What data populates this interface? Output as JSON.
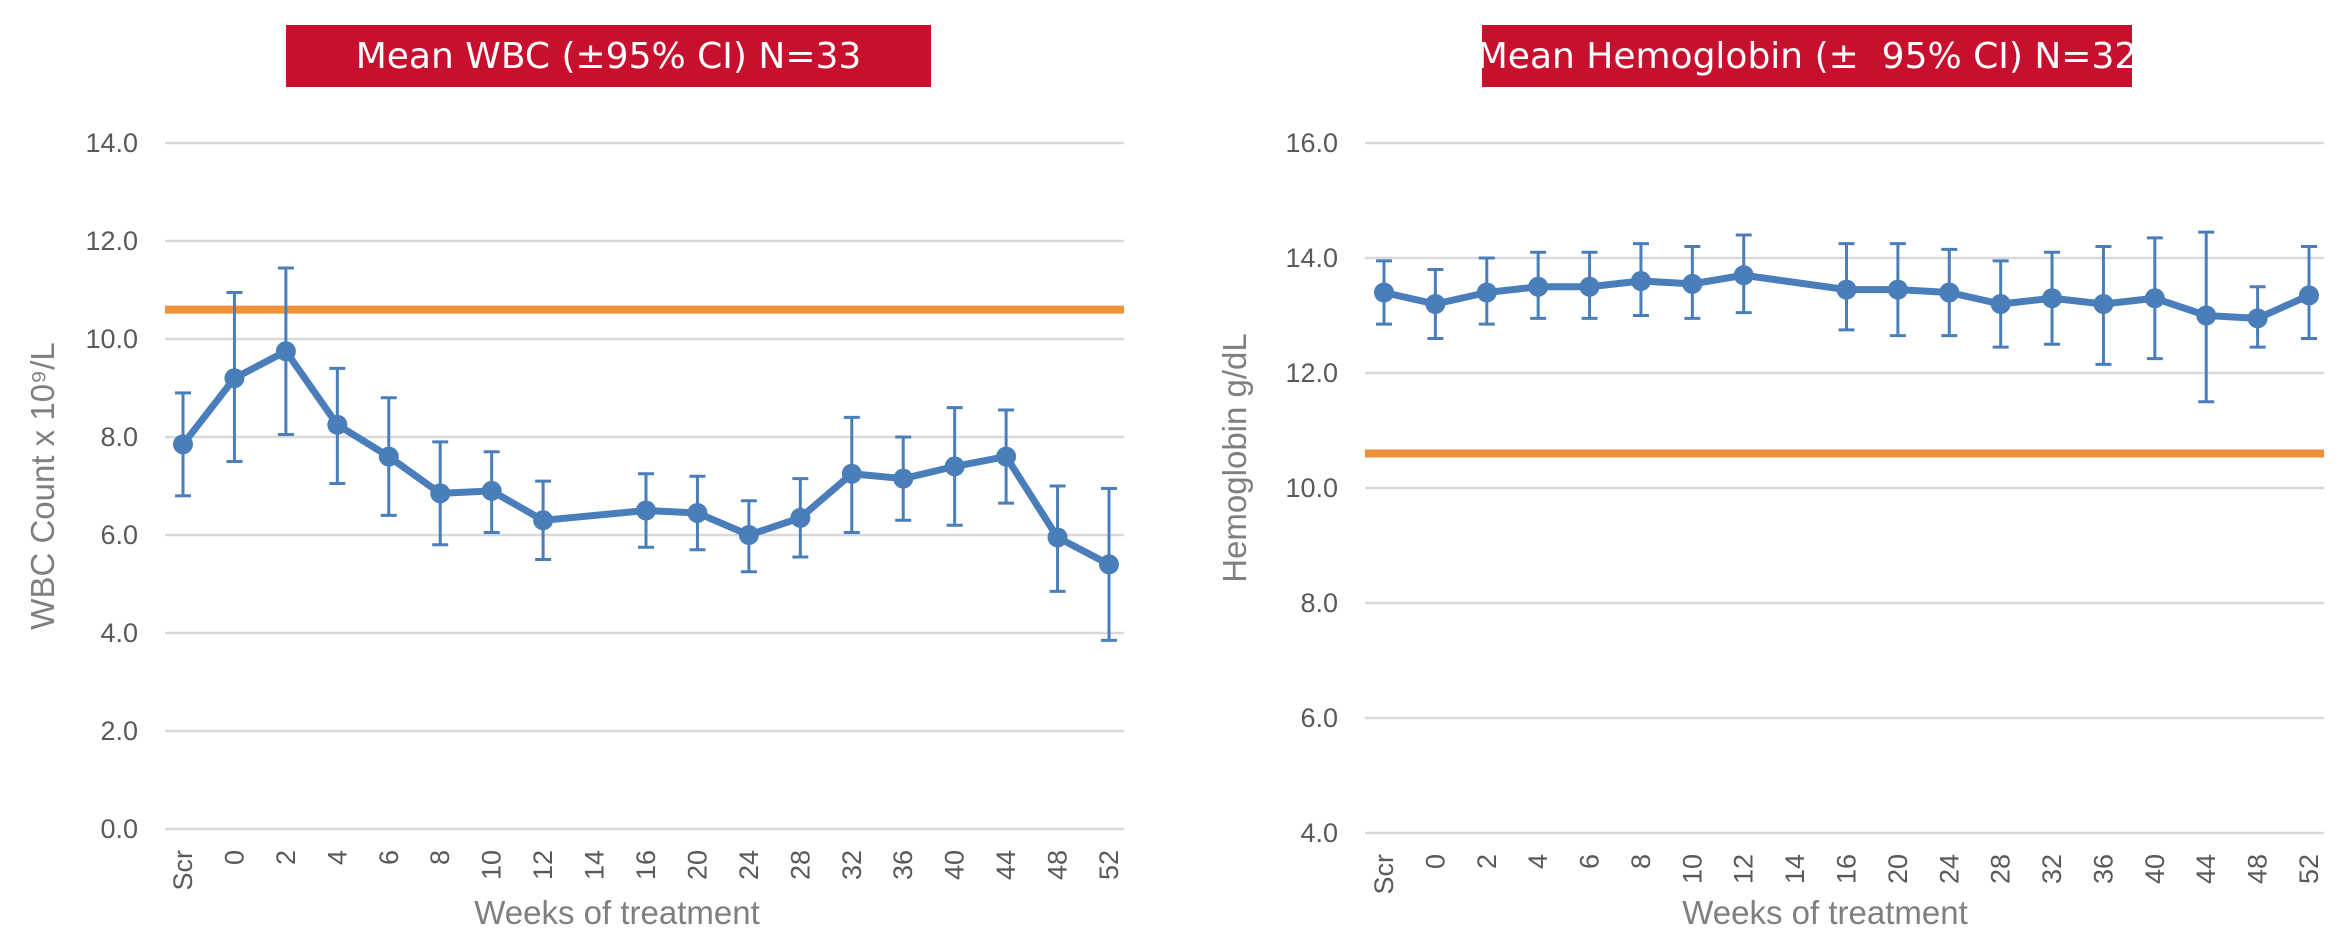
{
  "chart_data": [
    {
      "type": "line",
      "title": "Mean WBC (±95% CI) N=33",
      "xlabel": "Weeks of treatment",
      "ylabel": "WBC Count x 10⁹/L",
      "ylim": [
        0,
        14
      ],
      "y_ticks": [
        "0.0",
        "2.0",
        "4.0",
        "6.0",
        "8.0",
        "10.0",
        "12.0",
        "14.0"
      ],
      "x_tick_labels": [
        "Scr",
        "0",
        "2",
        "4",
        "6",
        "8",
        "10",
        "12",
        "14",
        "16",
        "20",
        "24",
        "28",
        "32",
        "36",
        "40",
        "44",
        "48",
        "52"
      ],
      "grid": true,
      "reference_line": {
        "value": 10.6,
        "color": "#f0913a"
      },
      "series": [
        {
          "name": "Mean WBC",
          "color": "#4a7ebb",
          "x": [
            "Scr",
            "0",
            "2",
            "4",
            "6",
            "8",
            "10",
            "12",
            "16",
            "20",
            "24",
            "28",
            "32",
            "36",
            "40",
            "44",
            "48",
            "52"
          ],
          "values": [
            7.85,
            9.2,
            9.75,
            8.25,
            7.6,
            6.85,
            6.9,
            6.3,
            6.5,
            6.45,
            6.0,
            6.35,
            7.25,
            7.15,
            7.4,
            7.6,
            5.95,
            5.4
          ],
          "ci_low": [
            6.8,
            7.5,
            8.05,
            7.05,
            6.4,
            5.8,
            6.05,
            5.5,
            5.75,
            5.7,
            5.25,
            5.55,
            6.05,
            6.3,
            6.2,
            6.65,
            4.85,
            3.85
          ],
          "ci_high": [
            8.9,
            10.95,
            11.45,
            9.4,
            8.8,
            7.9,
            7.7,
            7.1,
            7.25,
            7.2,
            6.7,
            7.15,
            8.4,
            8.0,
            8.6,
            8.55,
            7.0,
            6.95
          ]
        }
      ]
    },
    {
      "type": "line",
      "title": "Mean Hemoglobin (±  95% CI) N=32",
      "xlabel": "Weeks of treatment",
      "ylabel": "Hemoglobin g/dL",
      "ylim": [
        4,
        16
      ],
      "y_ticks": [
        "4.0",
        "6.0",
        "8.0",
        "10.0",
        "12.0",
        "14.0",
        "16.0"
      ],
      "x_tick_labels": [
        "Scr",
        "0",
        "2",
        "4",
        "6",
        "8",
        "10",
        "12",
        "14",
        "16",
        "20",
        "24",
        "28",
        "32",
        "36",
        "40",
        "44",
        "48",
        "52"
      ],
      "grid": true,
      "reference_line": {
        "value": 10.6,
        "color": "#f0913a"
      },
      "series": [
        {
          "name": "Mean Hemoglobin",
          "color": "#4a7ebb",
          "x": [
            "Scr",
            "0",
            "2",
            "4",
            "6",
            "8",
            "10",
            "12",
            "16",
            "20",
            "24",
            "28",
            "32",
            "36",
            "40",
            "44",
            "48",
            "52"
          ],
          "values": [
            13.4,
            13.2,
            13.4,
            13.5,
            13.5,
            13.6,
            13.55,
            13.7,
            13.45,
            13.45,
            13.4,
            13.2,
            13.3,
            13.2,
            13.3,
            13.0,
            12.95,
            13.35
          ],
          "ci_low": [
            12.85,
            12.6,
            12.85,
            12.95,
            12.95,
            13.0,
            12.95,
            13.05,
            12.75,
            12.65,
            12.65,
            12.45,
            12.5,
            12.15,
            12.25,
            11.5,
            12.45,
            12.6
          ],
          "ci_high": [
            13.95,
            13.8,
            14.0,
            14.1,
            14.1,
            14.25,
            14.2,
            14.4,
            14.25,
            14.25,
            14.15,
            13.95,
            14.1,
            14.2,
            14.35,
            14.45,
            13.5,
            14.2
          ]
        }
      ]
    }
  ]
}
